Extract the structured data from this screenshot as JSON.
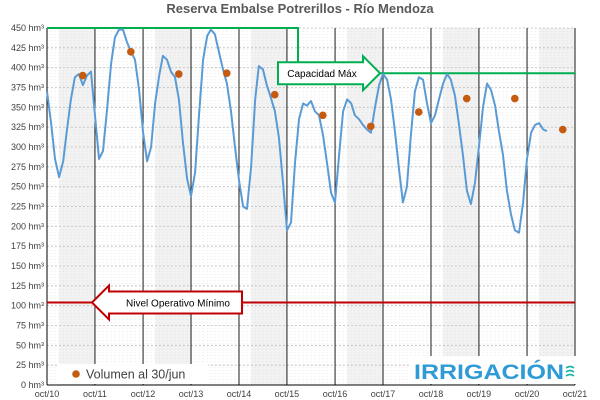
{
  "chart_data": {
    "type": "line",
    "title": "Reserva Embalse Potrerillos - Río Mendoza",
    "y_unit": "hm³",
    "ylim": [
      0,
      450
    ],
    "yticks": [
      "0 hm³",
      "25 hm³",
      "50 hm³",
      "75 hm³",
      "100 hm³",
      "125 hm³",
      "150 hm³",
      "175 hm³",
      "200 hm³",
      "225 hm³",
      "250 hm³",
      "275 hm³",
      "300 hm³",
      "325 hm³",
      "350 hm³",
      "375 hm³",
      "400 hm³",
      "425 hm³",
      "450 hm³"
    ],
    "xticks": [
      "oct/10",
      "oct/11",
      "oct/12",
      "oct/13",
      "oct/14",
      "oct/15",
      "oct/16",
      "oct/17",
      "oct/18",
      "oct/19",
      "oct/20",
      "oct/21"
    ],
    "xlim": [
      "2010-10-01",
      "2021-10-01"
    ],
    "grid": true,
    "series": [
      {
        "name": "",
        "color": "#5b9bd5",
        "points": [
          [
            "2010-10-01",
            370
          ],
          [
            "2010-11-01",
            330
          ],
          [
            "2010-12-01",
            285
          ],
          [
            "2011-01-01",
            262
          ],
          [
            "2011-02-01",
            282
          ],
          [
            "2011-03-01",
            320
          ],
          [
            "2011-04-01",
            360
          ],
          [
            "2011-05-01",
            388
          ],
          [
            "2011-06-01",
            392
          ],
          [
            "2011-07-01",
            378
          ],
          [
            "2011-08-01",
            390
          ],
          [
            "2011-09-01",
            395
          ],
          [
            "2011-10-01",
            340
          ],
          [
            "2011-11-01",
            285
          ],
          [
            "2011-12-01",
            295
          ],
          [
            "2012-01-01",
            348
          ],
          [
            "2012-02-01",
            405
          ],
          [
            "2012-03-01",
            438
          ],
          [
            "2012-04-01",
            448
          ],
          [
            "2012-05-01",
            448
          ],
          [
            "2012-06-01",
            432
          ],
          [
            "2012-07-01",
            420
          ],
          [
            "2012-08-01",
            410
          ],
          [
            "2012-09-01",
            372
          ],
          [
            "2012-10-01",
            318
          ],
          [
            "2012-11-01",
            282
          ],
          [
            "2012-12-01",
            300
          ],
          [
            "2013-01-01",
            355
          ],
          [
            "2013-02-01",
            390
          ],
          [
            "2013-03-01",
            415
          ],
          [
            "2013-04-01",
            410
          ],
          [
            "2013-05-01",
            395
          ],
          [
            "2013-06-01",
            388
          ],
          [
            "2013-07-01",
            360
          ],
          [
            "2013-08-01",
            305
          ],
          [
            "2013-09-01",
            260
          ],
          [
            "2013-10-01",
            238
          ],
          [
            "2013-11-01",
            268
          ],
          [
            "2013-12-01",
            340
          ],
          [
            "2014-01-01",
            410
          ],
          [
            "2014-02-01",
            440
          ],
          [
            "2014-03-01",
            448
          ],
          [
            "2014-04-01",
            442
          ],
          [
            "2014-05-01",
            420
          ],
          [
            "2014-06-01",
            398
          ],
          [
            "2014-07-01",
            380
          ],
          [
            "2014-08-01",
            345
          ],
          [
            "2014-09-01",
            300
          ],
          [
            "2014-10-01",
            258
          ],
          [
            "2014-11-01",
            225
          ],
          [
            "2014-12-01",
            222
          ],
          [
            "2015-01-01",
            275
          ],
          [
            "2015-02-01",
            360
          ],
          [
            "2015-03-01",
            402
          ],
          [
            "2015-04-01",
            398
          ],
          [
            "2015-05-01",
            378
          ],
          [
            "2015-06-01",
            362
          ],
          [
            "2015-07-01",
            345
          ],
          [
            "2015-08-01",
            312
          ],
          [
            "2015-09-01",
            255
          ],
          [
            "2015-10-01",
            195
          ],
          [
            "2015-11-01",
            205
          ],
          [
            "2015-12-01",
            280
          ],
          [
            "2016-01-01",
            335
          ],
          [
            "2016-02-01",
            355
          ],
          [
            "2016-03-01",
            352
          ],
          [
            "2016-04-01",
            358
          ],
          [
            "2016-05-01",
            345
          ],
          [
            "2016-06-01",
            340
          ],
          [
            "2016-07-01",
            315
          ],
          [
            "2016-08-01",
            280
          ],
          [
            "2016-09-01",
            242
          ],
          [
            "2016-10-01",
            230
          ],
          [
            "2016-11-01",
            290
          ],
          [
            "2016-12-01",
            345
          ],
          [
            "2017-01-01",
            360
          ],
          [
            "2017-02-01",
            355
          ],
          [
            "2017-03-01",
            340
          ],
          [
            "2017-04-01",
            335
          ],
          [
            "2017-05-01",
            328
          ],
          [
            "2017-06-01",
            322
          ],
          [
            "2017-07-01",
            318
          ],
          [
            "2017-08-01",
            350
          ],
          [
            "2017-09-01",
            378
          ],
          [
            "2017-10-01",
            392
          ],
          [
            "2017-11-01",
            385
          ],
          [
            "2017-12-01",
            360
          ],
          [
            "2018-01-01",
            318
          ],
          [
            "2018-02-01",
            270
          ],
          [
            "2018-03-01",
            230
          ],
          [
            "2018-04-01",
            250
          ],
          [
            "2018-05-01",
            315
          ],
          [
            "2018-06-01",
            370
          ],
          [
            "2018-07-01",
            388
          ],
          [
            "2018-08-01",
            385
          ],
          [
            "2018-09-01",
            355
          ],
          [
            "2018-10-01",
            330
          ],
          [
            "2018-11-01",
            340
          ],
          [
            "2018-12-01",
            360
          ],
          [
            "2019-01-01",
            380
          ],
          [
            "2019-02-01",
            392
          ],
          [
            "2019-03-01",
            385
          ],
          [
            "2019-04-01",
            365
          ],
          [
            "2019-05-01",
            330
          ],
          [
            "2019-06-01",
            290
          ],
          [
            "2019-07-01",
            245
          ],
          [
            "2019-08-01",
            228
          ],
          [
            "2019-09-01",
            255
          ],
          [
            "2019-10-01",
            300
          ],
          [
            "2019-11-01",
            350
          ],
          [
            "2019-12-01",
            380
          ],
          [
            "2020-01-01",
            372
          ],
          [
            "2020-02-01",
            352
          ],
          [
            "2020-03-01",
            320
          ],
          [
            "2020-04-01",
            290
          ],
          [
            "2020-05-01",
            245
          ],
          [
            "2020-06-01",
            215
          ],
          [
            "2020-07-01",
            195
          ],
          [
            "2020-08-01",
            192
          ],
          [
            "2020-09-01",
            230
          ],
          [
            "2020-10-01",
            285
          ],
          [
            "2020-11-01",
            318
          ],
          [
            "2020-12-01",
            328
          ],
          [
            "2021-01-01",
            330
          ],
          [
            "2021-02-01",
            322
          ],
          [
            "2021-03-01",
            320
          ]
        ]
      },
      {
        "name": "Volumen al 30/jun",
        "color": "#c55a11",
        "points": [
          [
            "2011-06-30",
            390
          ],
          [
            "2012-06-30",
            420
          ],
          [
            "2013-06-30",
            392
          ],
          [
            "2014-06-30",
            393
          ],
          [
            "2015-06-30",
            366
          ],
          [
            "2016-06-30",
            340
          ],
          [
            "2017-06-30",
            326
          ],
          [
            "2018-06-30",
            344
          ],
          [
            "2019-06-30",
            361
          ],
          [
            "2020-06-30",
            361
          ],
          [
            "2021-06-30",
            322
          ]
        ]
      }
    ],
    "reference_lines": [
      {
        "label": "Capacidad  Máx",
        "y": 450,
        "y_after": 393,
        "color": "#00b050"
      },
      {
        "label": "Nivel Operativo Mínimo",
        "y": 104,
        "color": "#c00000"
      }
    ],
    "legend": {
      "position": "bottom-left"
    }
  },
  "branding": {
    "logo_text": "IRRIGACIÓN"
  }
}
